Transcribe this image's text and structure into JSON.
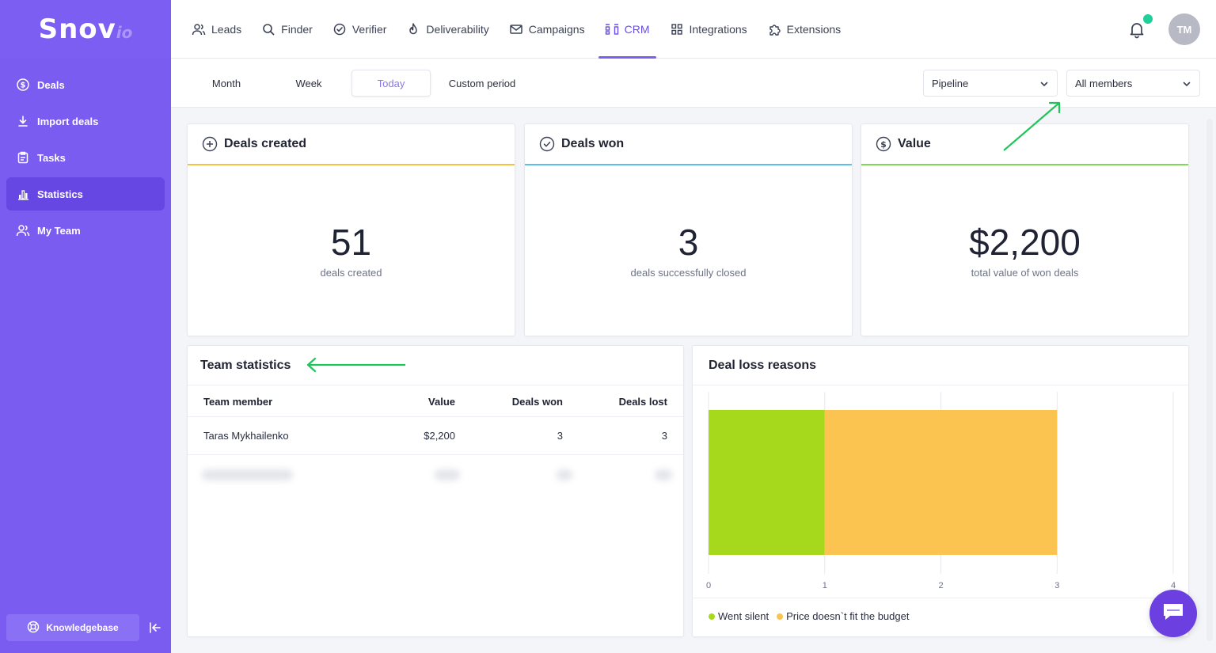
{
  "brand": {
    "name": "Snov",
    "suffix": "io"
  },
  "sidebar": {
    "items": [
      {
        "label": "Deals",
        "icon": "dollar-circle-icon"
      },
      {
        "label": "Import deals",
        "icon": "download-icon"
      },
      {
        "label": "Tasks",
        "icon": "clipboard-icon"
      },
      {
        "label": "Statistics",
        "icon": "bar-chart-icon",
        "active": true
      },
      {
        "label": "My Team",
        "icon": "team-icon"
      }
    ],
    "knowledgebase": "Knowledgebase"
  },
  "topnav": {
    "items": [
      {
        "label": "Leads",
        "icon": "users-icon"
      },
      {
        "label": "Finder",
        "icon": "search-icon"
      },
      {
        "label": "Verifier",
        "icon": "check-circle-icon"
      },
      {
        "label": "Deliverability",
        "icon": "flame-icon"
      },
      {
        "label": "Campaigns",
        "icon": "mail-icon"
      },
      {
        "label": "CRM",
        "icon": "crm-icon",
        "active": true
      },
      {
        "label": "Integrations",
        "icon": "grid-icon"
      },
      {
        "label": "Extensions",
        "icon": "puzzle-icon"
      }
    ],
    "avatar_initials": "TM"
  },
  "filters": {
    "periods": [
      "Month",
      "Week",
      "Today",
      "Custom period"
    ],
    "active_period": "Today",
    "pipeline_select": "Pipeline",
    "members_select": "All members"
  },
  "stats": {
    "deals_created": {
      "title": "Deals created",
      "value": "51",
      "caption": "deals created",
      "color": "#f5c242"
    },
    "deals_won": {
      "title": "Deals won",
      "value": "3",
      "caption": "deals successfully closed",
      "color": "#5cc0e8"
    },
    "value": {
      "title": "Value",
      "value": "$2,200",
      "caption": "total value of won deals",
      "color": "#7ed957"
    }
  },
  "team": {
    "title": "Team statistics",
    "headers": [
      "Team member",
      "Value",
      "Deals won",
      "Deals lost"
    ],
    "rows": [
      {
        "member": "Taras Mykhailenko",
        "value": "$2,200",
        "won": "3",
        "lost": "3"
      }
    ]
  },
  "loss": {
    "title": "Deal loss reasons"
  },
  "chart_data": {
    "type": "bar",
    "orientation": "horizontal-stacked",
    "title": "Deal loss reasons",
    "xlim": [
      0,
      4
    ],
    "xticks": [
      "0",
      "1",
      "2",
      "3",
      "4"
    ],
    "grid": true,
    "legend_position": "bottom-left",
    "series": [
      {
        "name": "Went silent",
        "values": [
          1
        ],
        "color": "#a6d91c"
      },
      {
        "name": "Price doesn`t fit the budget",
        "values": [
          2
        ],
        "color": "#fbc350"
      }
    ]
  }
}
